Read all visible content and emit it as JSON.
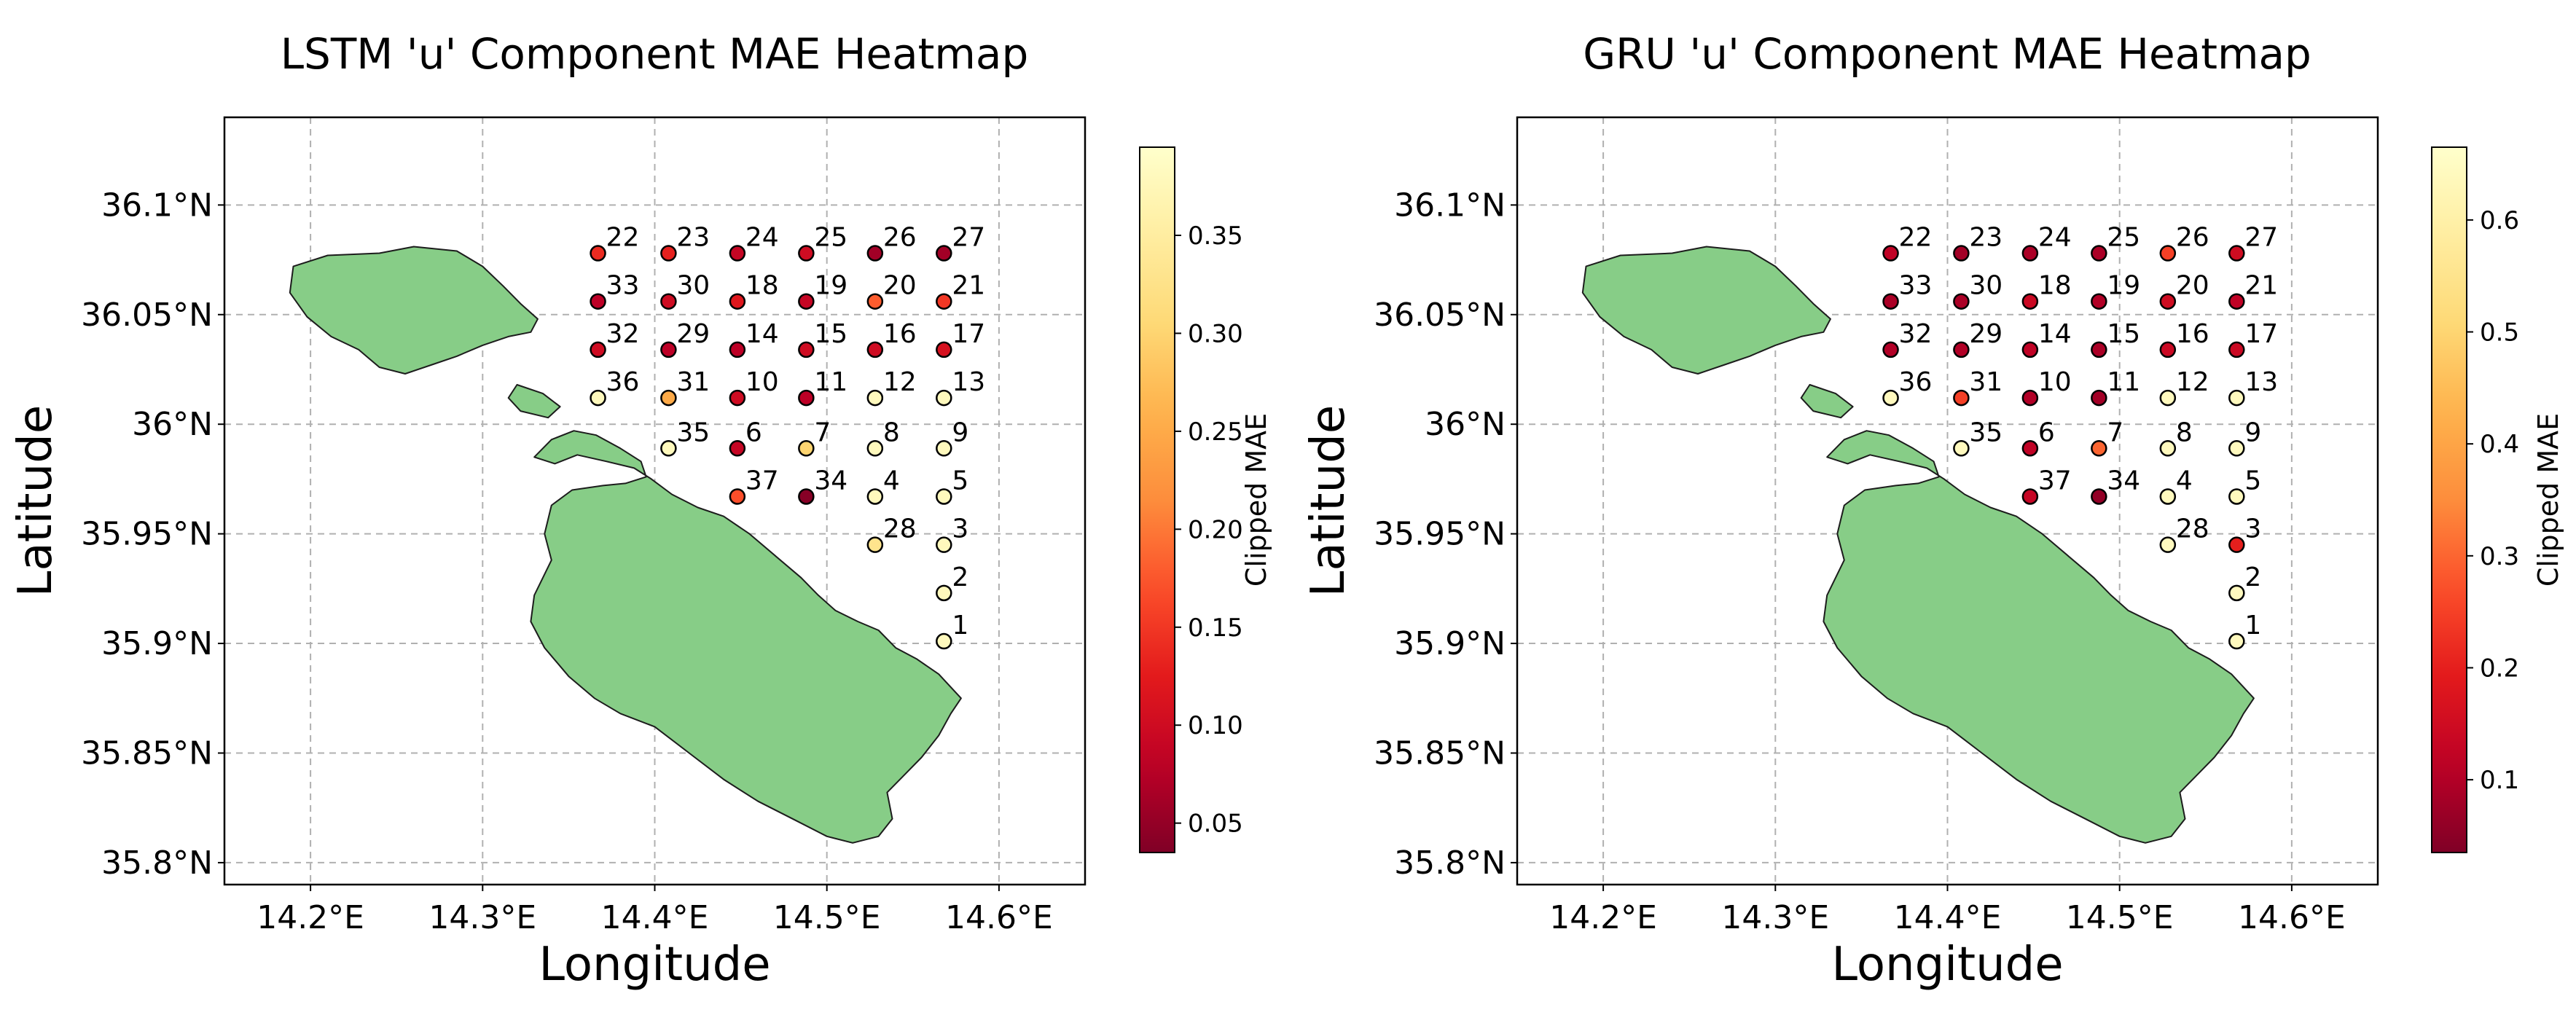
{
  "chart_data": [
    {
      "type": "scatter",
      "title": "LSTM 'u' Component MAE Heatmap",
      "xlabel": "Longitude",
      "ylabel": "Latitude",
      "xlim": [
        14.15,
        14.65
      ],
      "ylim": [
        35.79,
        36.14
      ],
      "xticks": [
        14.2,
        14.3,
        14.4,
        14.5,
        14.6
      ],
      "xtick_labels": [
        "14.2°E",
        "14.3°E",
        "14.4°E",
        "14.5°E",
        "14.6°E"
      ],
      "yticks": [
        35.8,
        35.85,
        35.9,
        35.95,
        36.0,
        36.05,
        36.1
      ],
      "ytick_labels": [
        "35.8°N",
        "35.85°N",
        "35.9°N",
        "35.95°N",
        "36°N",
        "36.05°N",
        "36.1°N"
      ],
      "grid": true,
      "colorbar": {
        "label": "Clipped MAE",
        "colormap": "YlOrRd_r",
        "range": [
          0.035,
          0.395
        ],
        "ticks": [
          0.05,
          0.1,
          0.15,
          0.2,
          0.25,
          0.3,
          0.35
        ],
        "tick_labels": [
          "0.05",
          "0.10",
          "0.15",
          "0.20",
          "0.25",
          "0.30",
          "0.35"
        ]
      },
      "points": [
        {
          "label": "22",
          "lon": 14.367,
          "lat": 36.078,
          "value": 0.14
        },
        {
          "label": "23",
          "lon": 14.408,
          "lat": 36.078,
          "value": 0.13
        },
        {
          "label": "24",
          "lon": 14.448,
          "lat": 36.078,
          "value": 0.09
        },
        {
          "label": "25",
          "lon": 14.488,
          "lat": 36.078,
          "value": 0.1
        },
        {
          "label": "26",
          "lon": 14.528,
          "lat": 36.078,
          "value": 0.06
        },
        {
          "label": "27",
          "lon": 14.568,
          "lat": 36.078,
          "value": 0.06
        },
        {
          "label": "33",
          "lon": 14.367,
          "lat": 36.056,
          "value": 0.08
        },
        {
          "label": "30",
          "lon": 14.408,
          "lat": 36.056,
          "value": 0.1
        },
        {
          "label": "18",
          "lon": 14.448,
          "lat": 36.056,
          "value": 0.12
        },
        {
          "label": "19",
          "lon": 14.488,
          "lat": 36.056,
          "value": 0.09
        },
        {
          "label": "20",
          "lon": 14.528,
          "lat": 36.056,
          "value": 0.18
        },
        {
          "label": "21",
          "lon": 14.568,
          "lat": 36.056,
          "value": 0.15
        },
        {
          "label": "32",
          "lon": 14.367,
          "lat": 36.034,
          "value": 0.1
        },
        {
          "label": "29",
          "lon": 14.408,
          "lat": 36.034,
          "value": 0.08
        },
        {
          "label": "14",
          "lon": 14.448,
          "lat": 36.034,
          "value": 0.08
        },
        {
          "label": "15",
          "lon": 14.488,
          "lat": 36.034,
          "value": 0.1
        },
        {
          "label": "16",
          "lon": 14.528,
          "lat": 36.034,
          "value": 0.1
        },
        {
          "label": "17",
          "lon": 14.568,
          "lat": 36.034,
          "value": 0.11
        },
        {
          "label": "36",
          "lon": 14.367,
          "lat": 36.012,
          "value": 0.38
        },
        {
          "label": "31",
          "lon": 14.408,
          "lat": 36.012,
          "value": 0.25
        },
        {
          "label": "10",
          "lon": 14.448,
          "lat": 36.012,
          "value": 0.1
        },
        {
          "label": "11",
          "lon": 14.488,
          "lat": 36.012,
          "value": 0.08
        },
        {
          "label": "12",
          "lon": 14.528,
          "lat": 36.012,
          "value": 0.38
        },
        {
          "label": "13",
          "lon": 14.568,
          "lat": 36.012,
          "value": 0.38
        },
        {
          "label": "35",
          "lon": 14.408,
          "lat": 35.989,
          "value": 0.38
        },
        {
          "label": "6",
          "lon": 14.448,
          "lat": 35.989,
          "value": 0.09
        },
        {
          "label": "7",
          "lon": 14.488,
          "lat": 35.989,
          "value": 0.3
        },
        {
          "label": "8",
          "lon": 14.528,
          "lat": 35.989,
          "value": 0.38
        },
        {
          "label": "9",
          "lon": 14.568,
          "lat": 35.989,
          "value": 0.38
        },
        {
          "label": "37",
          "lon": 14.448,
          "lat": 35.967,
          "value": 0.17
        },
        {
          "label": "34",
          "lon": 14.488,
          "lat": 35.967,
          "value": 0.04
        },
        {
          "label": "4",
          "lon": 14.528,
          "lat": 35.967,
          "value": 0.38
        },
        {
          "label": "5",
          "lon": 14.568,
          "lat": 35.967,
          "value": 0.38
        },
        {
          "label": "28",
          "lon": 14.528,
          "lat": 35.945,
          "value": 0.33
        },
        {
          "label": "3",
          "lon": 14.568,
          "lat": 35.945,
          "value": 0.38
        },
        {
          "label": "2",
          "lon": 14.568,
          "lat": 35.923,
          "value": 0.38
        },
        {
          "label": "1",
          "lon": 14.568,
          "lat": 35.901,
          "value": 0.38
        }
      ]
    },
    {
      "type": "scatter",
      "title": "GRU 'u' Component MAE Heatmap",
      "xlabel": "Longitude",
      "ylabel": "Latitude",
      "xlim": [
        14.15,
        14.65
      ],
      "ylim": [
        35.79,
        36.14
      ],
      "xticks": [
        14.2,
        14.3,
        14.4,
        14.5,
        14.6
      ],
      "xtick_labels": [
        "14.2°E",
        "14.3°E",
        "14.4°E",
        "14.5°E",
        "14.6°E"
      ],
      "yticks": [
        35.8,
        35.85,
        35.9,
        35.95,
        36.0,
        36.05,
        36.1
      ],
      "ytick_labels": [
        "35.8°N",
        "35.85°N",
        "35.9°N",
        "35.95°N",
        "36°N",
        "36.05°N",
        "36.1°N"
      ],
      "grid": true,
      "colorbar": {
        "label": "Clipped MAE",
        "colormap": "YlOrRd_r",
        "range": [
          0.035,
          0.665
        ],
        "ticks": [
          0.1,
          0.2,
          0.3,
          0.4,
          0.5,
          0.6
        ],
        "tick_labels": [
          "0.1",
          "0.2",
          "0.3",
          "0.4",
          "0.5",
          "0.6"
        ]
      },
      "points": [
        {
          "label": "22",
          "lon": 14.367,
          "lat": 36.078,
          "value": 0.12
        },
        {
          "label": "23",
          "lon": 14.408,
          "lat": 36.078,
          "value": 0.08
        },
        {
          "label": "24",
          "lon": 14.448,
          "lat": 36.078,
          "value": 0.09
        },
        {
          "label": "25",
          "lon": 14.488,
          "lat": 36.078,
          "value": 0.09
        },
        {
          "label": "26",
          "lon": 14.528,
          "lat": 36.078,
          "value": 0.25
        },
        {
          "label": "27",
          "lon": 14.568,
          "lat": 36.078,
          "value": 0.15
        },
        {
          "label": "33",
          "lon": 14.367,
          "lat": 36.056,
          "value": 0.09
        },
        {
          "label": "30",
          "lon": 14.408,
          "lat": 36.056,
          "value": 0.09
        },
        {
          "label": "18",
          "lon": 14.448,
          "lat": 36.056,
          "value": 0.14
        },
        {
          "label": "19",
          "lon": 14.488,
          "lat": 36.056,
          "value": 0.1
        },
        {
          "label": "20",
          "lon": 14.528,
          "lat": 36.056,
          "value": 0.15
        },
        {
          "label": "21",
          "lon": 14.568,
          "lat": 36.056,
          "value": 0.12
        },
        {
          "label": "32",
          "lon": 14.367,
          "lat": 36.034,
          "value": 0.1
        },
        {
          "label": "29",
          "lon": 14.408,
          "lat": 36.034,
          "value": 0.1
        },
        {
          "label": "14",
          "lon": 14.448,
          "lat": 36.034,
          "value": 0.12
        },
        {
          "label": "15",
          "lon": 14.488,
          "lat": 36.034,
          "value": 0.09
        },
        {
          "label": "16",
          "lon": 14.528,
          "lat": 36.034,
          "value": 0.14
        },
        {
          "label": "17",
          "lon": 14.568,
          "lat": 36.034,
          "value": 0.14
        },
        {
          "label": "36",
          "lon": 14.367,
          "lat": 36.012,
          "value": 0.64
        },
        {
          "label": "31",
          "lon": 14.408,
          "lat": 36.012,
          "value": 0.25
        },
        {
          "label": "10",
          "lon": 14.448,
          "lat": 36.012,
          "value": 0.1
        },
        {
          "label": "11",
          "lon": 14.488,
          "lat": 36.012,
          "value": 0.08
        },
        {
          "label": "12",
          "lon": 14.528,
          "lat": 36.012,
          "value": 0.64
        },
        {
          "label": "13",
          "lon": 14.568,
          "lat": 36.012,
          "value": 0.64
        },
        {
          "label": "35",
          "lon": 14.408,
          "lat": 35.989,
          "value": 0.64
        },
        {
          "label": "6",
          "lon": 14.448,
          "lat": 35.989,
          "value": 0.12
        },
        {
          "label": "7",
          "lon": 14.488,
          "lat": 35.989,
          "value": 0.3
        },
        {
          "label": "8",
          "lon": 14.528,
          "lat": 35.989,
          "value": 0.64
        },
        {
          "label": "9",
          "lon": 14.568,
          "lat": 35.989,
          "value": 0.64
        },
        {
          "label": "37",
          "lon": 14.448,
          "lat": 35.967,
          "value": 0.13
        },
        {
          "label": "34",
          "lon": 14.488,
          "lat": 35.967,
          "value": 0.06
        },
        {
          "label": "4",
          "lon": 14.528,
          "lat": 35.967,
          "value": 0.64
        },
        {
          "label": "5",
          "lon": 14.568,
          "lat": 35.967,
          "value": 0.64
        },
        {
          "label": "28",
          "lon": 14.528,
          "lat": 35.945,
          "value": 0.64
        },
        {
          "label": "3",
          "lon": 14.568,
          "lat": 35.945,
          "value": 0.2
        },
        {
          "label": "2",
          "lon": 14.568,
          "lat": 35.923,
          "value": 0.64
        },
        {
          "label": "1",
          "lon": 14.568,
          "lat": 35.901,
          "value": 0.64
        }
      ]
    }
  ]
}
